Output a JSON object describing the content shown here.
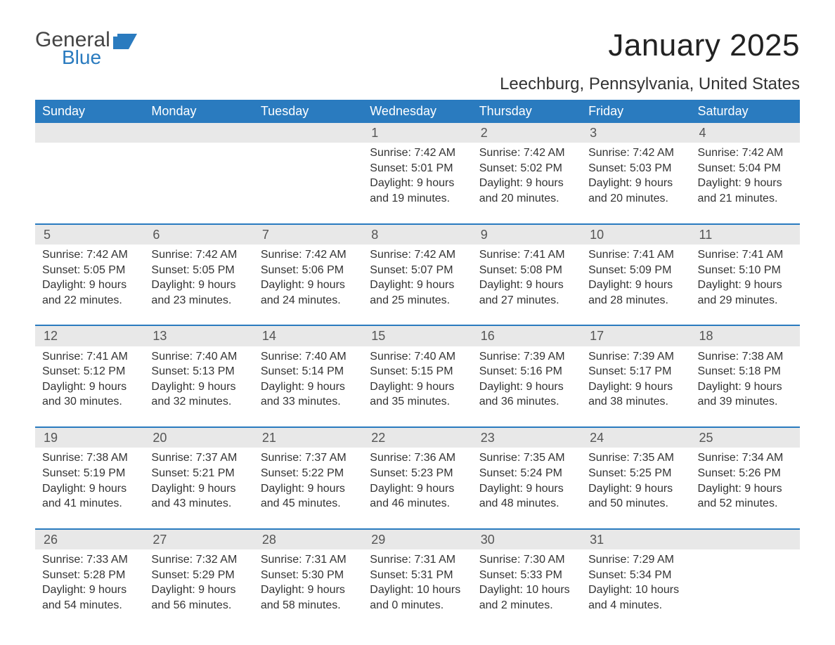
{
  "logo": {
    "general": "General",
    "blue": "Blue"
  },
  "title": "January 2025",
  "location": "Leechburg, Pennsylvania, United States",
  "colors": {
    "header_bg": "#2a7bbf",
    "header_fg": "#ffffff",
    "daynum_bg": "#e8e8e8",
    "row_border": "#2a7bbf",
    "text": "#333333",
    "logo_blue": "#2a7bbf",
    "logo_gray": "#444444"
  },
  "weekdays": [
    "Sunday",
    "Monday",
    "Tuesday",
    "Wednesday",
    "Thursday",
    "Friday",
    "Saturday"
  ],
  "weeks": [
    [
      {
        "day": "",
        "sunrise": "",
        "sunset": "",
        "daylight": ""
      },
      {
        "day": "",
        "sunrise": "",
        "sunset": "",
        "daylight": ""
      },
      {
        "day": "",
        "sunrise": "",
        "sunset": "",
        "daylight": ""
      },
      {
        "day": "1",
        "sunrise": "Sunrise: 7:42 AM",
        "sunset": "Sunset: 5:01 PM",
        "daylight": "Daylight: 9 hours and 19 minutes."
      },
      {
        "day": "2",
        "sunrise": "Sunrise: 7:42 AM",
        "sunset": "Sunset: 5:02 PM",
        "daylight": "Daylight: 9 hours and 20 minutes."
      },
      {
        "day": "3",
        "sunrise": "Sunrise: 7:42 AM",
        "sunset": "Sunset: 5:03 PM",
        "daylight": "Daylight: 9 hours and 20 minutes."
      },
      {
        "day": "4",
        "sunrise": "Sunrise: 7:42 AM",
        "sunset": "Sunset: 5:04 PM",
        "daylight": "Daylight: 9 hours and 21 minutes."
      }
    ],
    [
      {
        "day": "5",
        "sunrise": "Sunrise: 7:42 AM",
        "sunset": "Sunset: 5:05 PM",
        "daylight": "Daylight: 9 hours and 22 minutes."
      },
      {
        "day": "6",
        "sunrise": "Sunrise: 7:42 AM",
        "sunset": "Sunset: 5:05 PM",
        "daylight": "Daylight: 9 hours and 23 minutes."
      },
      {
        "day": "7",
        "sunrise": "Sunrise: 7:42 AM",
        "sunset": "Sunset: 5:06 PM",
        "daylight": "Daylight: 9 hours and 24 minutes."
      },
      {
        "day": "8",
        "sunrise": "Sunrise: 7:42 AM",
        "sunset": "Sunset: 5:07 PM",
        "daylight": "Daylight: 9 hours and 25 minutes."
      },
      {
        "day": "9",
        "sunrise": "Sunrise: 7:41 AM",
        "sunset": "Sunset: 5:08 PM",
        "daylight": "Daylight: 9 hours and 27 minutes."
      },
      {
        "day": "10",
        "sunrise": "Sunrise: 7:41 AM",
        "sunset": "Sunset: 5:09 PM",
        "daylight": "Daylight: 9 hours and 28 minutes."
      },
      {
        "day": "11",
        "sunrise": "Sunrise: 7:41 AM",
        "sunset": "Sunset: 5:10 PM",
        "daylight": "Daylight: 9 hours and 29 minutes."
      }
    ],
    [
      {
        "day": "12",
        "sunrise": "Sunrise: 7:41 AM",
        "sunset": "Sunset: 5:12 PM",
        "daylight": "Daylight: 9 hours and 30 minutes."
      },
      {
        "day": "13",
        "sunrise": "Sunrise: 7:40 AM",
        "sunset": "Sunset: 5:13 PM",
        "daylight": "Daylight: 9 hours and 32 minutes."
      },
      {
        "day": "14",
        "sunrise": "Sunrise: 7:40 AM",
        "sunset": "Sunset: 5:14 PM",
        "daylight": "Daylight: 9 hours and 33 minutes."
      },
      {
        "day": "15",
        "sunrise": "Sunrise: 7:40 AM",
        "sunset": "Sunset: 5:15 PM",
        "daylight": "Daylight: 9 hours and 35 minutes."
      },
      {
        "day": "16",
        "sunrise": "Sunrise: 7:39 AM",
        "sunset": "Sunset: 5:16 PM",
        "daylight": "Daylight: 9 hours and 36 minutes."
      },
      {
        "day": "17",
        "sunrise": "Sunrise: 7:39 AM",
        "sunset": "Sunset: 5:17 PM",
        "daylight": "Daylight: 9 hours and 38 minutes."
      },
      {
        "day": "18",
        "sunrise": "Sunrise: 7:38 AM",
        "sunset": "Sunset: 5:18 PM",
        "daylight": "Daylight: 9 hours and 39 minutes."
      }
    ],
    [
      {
        "day": "19",
        "sunrise": "Sunrise: 7:38 AM",
        "sunset": "Sunset: 5:19 PM",
        "daylight": "Daylight: 9 hours and 41 minutes."
      },
      {
        "day": "20",
        "sunrise": "Sunrise: 7:37 AM",
        "sunset": "Sunset: 5:21 PM",
        "daylight": "Daylight: 9 hours and 43 minutes."
      },
      {
        "day": "21",
        "sunrise": "Sunrise: 7:37 AM",
        "sunset": "Sunset: 5:22 PM",
        "daylight": "Daylight: 9 hours and 45 minutes."
      },
      {
        "day": "22",
        "sunrise": "Sunrise: 7:36 AM",
        "sunset": "Sunset: 5:23 PM",
        "daylight": "Daylight: 9 hours and 46 minutes."
      },
      {
        "day": "23",
        "sunrise": "Sunrise: 7:35 AM",
        "sunset": "Sunset: 5:24 PM",
        "daylight": "Daylight: 9 hours and 48 minutes."
      },
      {
        "day": "24",
        "sunrise": "Sunrise: 7:35 AM",
        "sunset": "Sunset: 5:25 PM",
        "daylight": "Daylight: 9 hours and 50 minutes."
      },
      {
        "day": "25",
        "sunrise": "Sunrise: 7:34 AM",
        "sunset": "Sunset: 5:26 PM",
        "daylight": "Daylight: 9 hours and 52 minutes."
      }
    ],
    [
      {
        "day": "26",
        "sunrise": "Sunrise: 7:33 AM",
        "sunset": "Sunset: 5:28 PM",
        "daylight": "Daylight: 9 hours and 54 minutes."
      },
      {
        "day": "27",
        "sunrise": "Sunrise: 7:32 AM",
        "sunset": "Sunset: 5:29 PM",
        "daylight": "Daylight: 9 hours and 56 minutes."
      },
      {
        "day": "28",
        "sunrise": "Sunrise: 7:31 AM",
        "sunset": "Sunset: 5:30 PM",
        "daylight": "Daylight: 9 hours and 58 minutes."
      },
      {
        "day": "29",
        "sunrise": "Sunrise: 7:31 AM",
        "sunset": "Sunset: 5:31 PM",
        "daylight": "Daylight: 10 hours and 0 minutes."
      },
      {
        "day": "30",
        "sunrise": "Sunrise: 7:30 AM",
        "sunset": "Sunset: 5:33 PM",
        "daylight": "Daylight: 10 hours and 2 minutes."
      },
      {
        "day": "31",
        "sunrise": "Sunrise: 7:29 AM",
        "sunset": "Sunset: 5:34 PM",
        "daylight": "Daylight: 10 hours and 4 minutes."
      },
      {
        "day": "",
        "sunrise": "",
        "sunset": "",
        "daylight": ""
      }
    ]
  ]
}
